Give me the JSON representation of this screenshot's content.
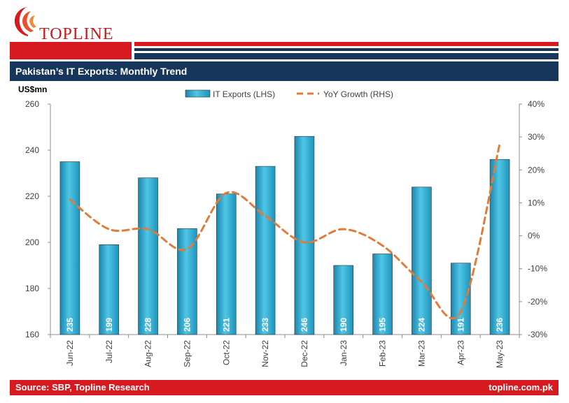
{
  "header": {
    "logo_text": "TOPLINE",
    "title": "Pakistan’s IT Exports: Monthly Trend"
  },
  "footer": {
    "source": "Source: SBP, Topline Research",
    "website": "topline.com.pk"
  },
  "colors": {
    "brand_red": "#d71920",
    "navy": "#16365c",
    "bar": "#29a9d0",
    "line": "#e07b39"
  },
  "chart_data": {
    "type": "bar",
    "categories": [
      "Jun-22",
      "Jul-22",
      "Aug-22",
      "Sep-22",
      "Oct-22",
      "Nov-22",
      "Dec-22",
      "Jan-23",
      "Feb-23",
      "Mar-23",
      "Apr-23",
      "May-23"
    ],
    "series": [
      {
        "name": "IT Exports (LHS)",
        "type": "bar",
        "axis": "left",
        "values": [
          235,
          199,
          228,
          206,
          221,
          233,
          246,
          190,
          195,
          224,
          191,
          236
        ]
      },
      {
        "name": "YoY Growth (RHS)",
        "type": "line",
        "style": "dashed",
        "axis": "right",
        "values": [
          11,
          2,
          2,
          -4,
          13,
          6,
          -2,
          2,
          -3,
          -14,
          -23,
          28
        ]
      }
    ],
    "ylabel": "US$mn",
    "ylim": [
      160,
      260
    ],
    "yticks": [
      160,
      180,
      200,
      220,
      240,
      260
    ],
    "y2lim": [
      -30,
      40
    ],
    "y2ticks": [
      -30,
      -20,
      -10,
      0,
      10,
      20,
      30,
      40
    ],
    "y2tick_labels": [
      "-30%",
      "-20%",
      "-10%",
      "0%",
      "10%",
      "20%",
      "30%",
      "40%"
    ],
    "data_labels": true,
    "grid": false,
    "legend": "top-center"
  }
}
